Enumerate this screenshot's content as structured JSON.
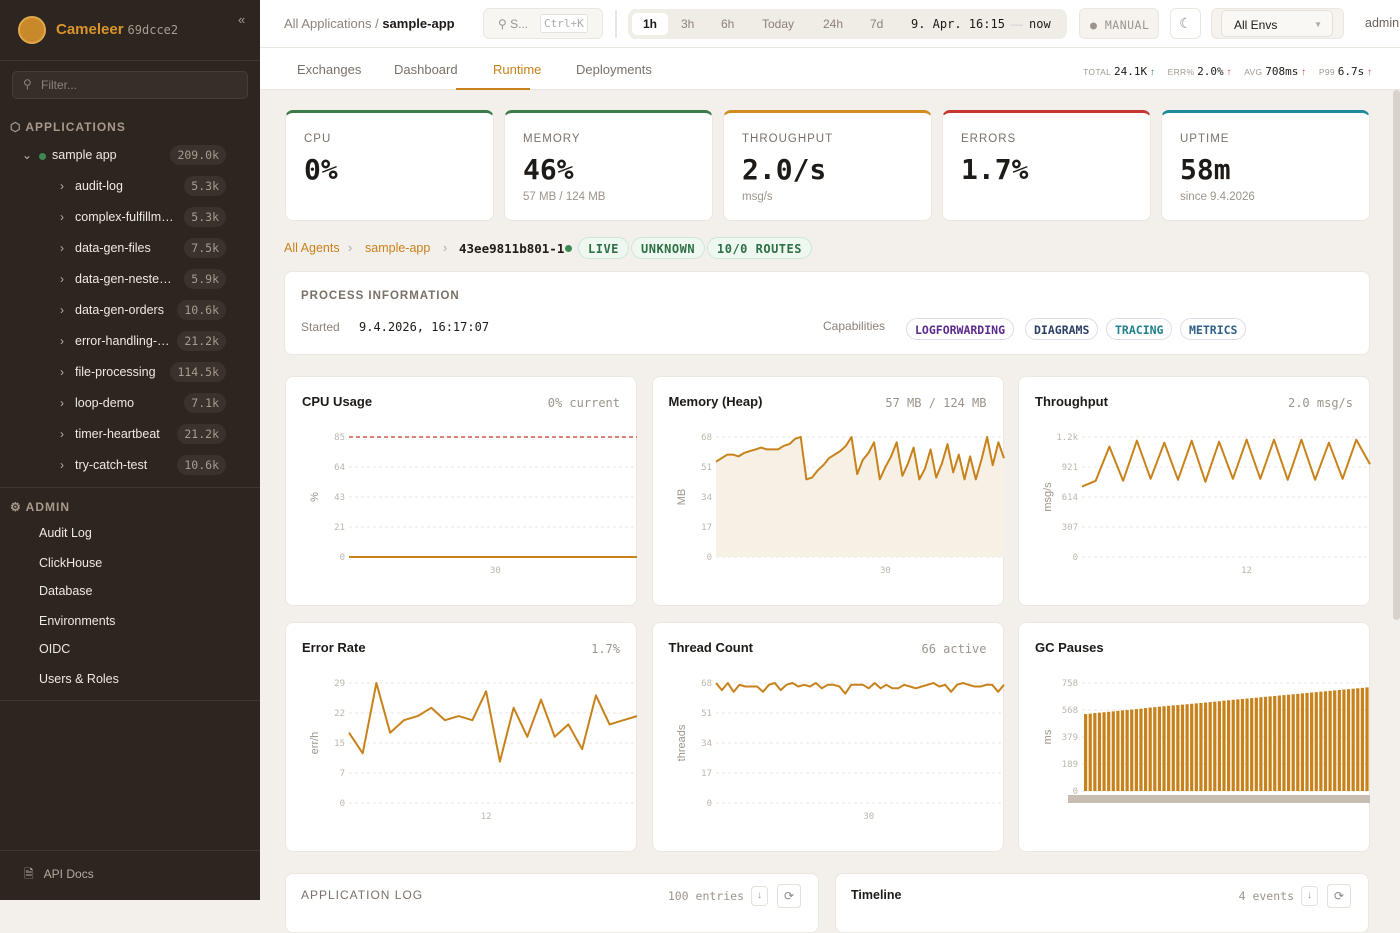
{
  "sidebar": {
    "brand": "Cameleer",
    "version": "69dcce2",
    "collapse": "«",
    "filter_placeholder": "Filter...",
    "applications_title": "APPLICATIONS",
    "app": {
      "name": "sample app",
      "count": "209.0k",
      "status_color": "#3b8a55"
    },
    "routes": [
      {
        "name": "audit-log",
        "count": "5.3k"
      },
      {
        "name": "complex-fulfillm…",
        "count": "5.3k"
      },
      {
        "name": "data-gen-files",
        "count": "7.5k"
      },
      {
        "name": "data-gen-neste…",
        "count": "5.9k"
      },
      {
        "name": "data-gen-orders",
        "count": "10.6k"
      },
      {
        "name": "error-handling-…",
        "count": "21.2k"
      },
      {
        "name": "file-processing",
        "count": "114.5k"
      },
      {
        "name": "loop-demo",
        "count": "7.1k"
      },
      {
        "name": "timer-heartbeat",
        "count": "21.2k"
      },
      {
        "name": "try-catch-test",
        "count": "10.6k"
      }
    ],
    "admin_title": "ADMIN",
    "admin": [
      "Audit Log",
      "ClickHouse",
      "Database",
      "Environments",
      "OIDC",
      "Users & Roles"
    ],
    "api_docs": "API Docs"
  },
  "header": {
    "crumb_root": "All Applications",
    "crumb_sep": "/",
    "crumb_current": "sample-app",
    "search": "S...",
    "search_kbd": "Ctrl+K",
    "ranges": [
      "1h",
      "3h",
      "6h",
      "Today",
      "24h",
      "7d"
    ],
    "active_range": "1h",
    "range_from": "9. Apr. 16:15",
    "range_dash": "—",
    "range_to": "now",
    "manual": "● MANUAL",
    "env": "All Envs",
    "user": "admin"
  },
  "tabs": [
    "Exchanges",
    "Dashboard",
    "Runtime",
    "Deployments"
  ],
  "active_tab": "Runtime",
  "stats": {
    "total_label": "TOTAL",
    "total": "24.1K",
    "err_label": "ERR%",
    "err": "2.0%",
    "avg_label": "AVG",
    "avg": "708ms",
    "p99_label": "P99",
    "p99": "6.7s",
    "arrow": "↑"
  },
  "kpis": [
    {
      "label": "CPU",
      "value": "0%",
      "sub": "",
      "color": "#3b7a4a"
    },
    {
      "label": "MEMORY",
      "value": "46%",
      "sub": "57 MB / 124 MB",
      "color": "#3b7a4a"
    },
    {
      "label": "THROUGHPUT",
      "value": "2.0/s",
      "sub": "msg/s",
      "color": "#d08c1c"
    },
    {
      "label": "ERRORS",
      "value": "1.7%",
      "sub": "",
      "color": "#c8372d"
    },
    {
      "label": "UPTIME",
      "value": "58m",
      "sub": "since 9.4.2026",
      "color": "#1f8a9a"
    }
  ],
  "agent": {
    "crumb_root": "All Agents",
    "crumb_app": "sample-app",
    "sep": "›",
    "id": "43ee9811b801-1",
    "badges": [
      "LIVE",
      "UNKNOWN",
      "10/0 ROUTES"
    ]
  },
  "process": {
    "title": "PROCESS INFORMATION",
    "started_label": "Started",
    "started": "9.4.2026, 16:17:07",
    "cap_label": "Capabilities",
    "capabilities": [
      {
        "name": "LOGFORWARDING",
        "color": "#5b2a8c"
      },
      {
        "name": "DIAGRAMS",
        "color": "#2e3f66"
      },
      {
        "name": "TRACING",
        "color": "#1f7f8c"
      },
      {
        "name": "METRICS",
        "color": "#2e5f86"
      }
    ]
  },
  "chart_data": [
    {
      "type": "line",
      "title": "CPU Usage",
      "right": "0% current",
      "ylabel": "%",
      "yticks": [
        "0",
        "21",
        "43",
        "64",
        "85"
      ],
      "ylim": [
        0,
        85
      ],
      "xtick": "30",
      "xtick_index": 30,
      "threshold": 85,
      "values": [
        0,
        0,
        0,
        0,
        0,
        0,
        0,
        0,
        0,
        0,
        0,
        0,
        0,
        0,
        0,
        0,
        0,
        0,
        0,
        0,
        0,
        0,
        0,
        0,
        0,
        0,
        0,
        0,
        0,
        0,
        0,
        0,
        0,
        0,
        0,
        0,
        0,
        0,
        0,
        0,
        0,
        0,
        0,
        0,
        0,
        0,
        0,
        0,
        0,
        0,
        0,
        0,
        0,
        0,
        0,
        0,
        0,
        0,
        0,
        0
      ]
    },
    {
      "type": "area",
      "title": "Memory (Heap)",
      "right": "57 MB / 124 MB",
      "ylabel": "MB",
      "yticks": [
        "0",
        "17",
        "34",
        "51",
        "68"
      ],
      "ylim": [
        0,
        68
      ],
      "xtick": "30",
      "xtick_index": 30,
      "values": [
        54,
        56,
        58,
        58,
        57,
        59,
        60,
        61,
        62,
        61,
        61,
        61,
        63,
        64,
        67,
        68,
        44,
        45,
        49,
        52,
        56,
        58,
        60,
        63,
        68,
        47,
        55,
        59,
        65,
        44,
        51,
        57,
        65,
        46,
        53,
        62,
        44,
        50,
        61,
        45,
        53,
        64,
        48,
        58,
        44,
        57,
        44,
        55,
        68,
        52,
        65,
        56
      ]
    },
    {
      "type": "line",
      "title": "Throughput",
      "right": "2.0 msg/s",
      "ylabel": "msg/s",
      "yticks": [
        "0",
        "307",
        "614",
        "921",
        "1.2k"
      ],
      "ylim": [
        0,
        1228
      ],
      "xtick": "12",
      "xtick_index": 12,
      "values": [
        720,
        780,
        1130,
        780,
        1190,
        800,
        1170,
        790,
        1190,
        770,
        1180,
        800,
        1200,
        800,
        1200,
        790,
        1200,
        790,
        1170,
        800,
        1200,
        950
      ]
    },
    {
      "type": "line",
      "title": "Error Rate",
      "right": "1.7%",
      "ylabel": "err/h",
      "yticks": [
        "0",
        "7",
        "15",
        "22",
        "29"
      ],
      "ylim": [
        0,
        29
      ],
      "xtick": "12",
      "xtick_index": 10,
      "values": [
        17,
        12,
        29,
        17,
        20,
        21,
        23,
        20,
        21,
        20,
        27,
        10,
        23,
        16,
        25,
        16,
        19,
        13,
        26,
        19,
        20,
        21
      ]
    },
    {
      "type": "line",
      "title": "Thread Count",
      "right": "66 active",
      "ylabel": "threads",
      "yticks": [
        "0",
        "17",
        "34",
        "51",
        "68"
      ],
      "ylim": [
        0,
        68
      ],
      "xtick": "30",
      "xtick_index": 26,
      "values": [
        68,
        64,
        68,
        63,
        67,
        66,
        66,
        66,
        63,
        67,
        68,
        64,
        67,
        68,
        66,
        67,
        66,
        68,
        65,
        67,
        67,
        66,
        62,
        67,
        67,
        67,
        65,
        68,
        65,
        67,
        65,
        65,
        67,
        66,
        65,
        66,
        67,
        68,
        66,
        67,
        63,
        67,
        68,
        67,
        66,
        66,
        67,
        67,
        63,
        67
      ]
    },
    {
      "type": "bar",
      "title": "GC Pauses",
      "right": "",
      "ylabel": "ms",
      "yticks": [
        "0",
        "189",
        "379",
        "568",
        "758"
      ],
      "ylim": [
        0,
        758
      ],
      "values": [
        540,
        543,
        547,
        550,
        553,
        556,
        559,
        562,
        566,
        569,
        572,
        575,
        578,
        582,
        586,
        589,
        592,
        595,
        598,
        601,
        603,
        606,
        609,
        612,
        615,
        618,
        621,
        624,
        627,
        630,
        634,
        637,
        640,
        643,
        646,
        649,
        652,
        655,
        658,
        661,
        664,
        667,
        670,
        673,
        676,
        679,
        682,
        685,
        688,
        691,
        694,
        697,
        700,
        703,
        706,
        709,
        712,
        715,
        718,
        721,
        724,
        727
      ]
    }
  ],
  "log": {
    "title": "APPLICATION LOG",
    "count": "100 entries"
  },
  "timeline": {
    "title": "Timeline",
    "count": "4 events"
  }
}
